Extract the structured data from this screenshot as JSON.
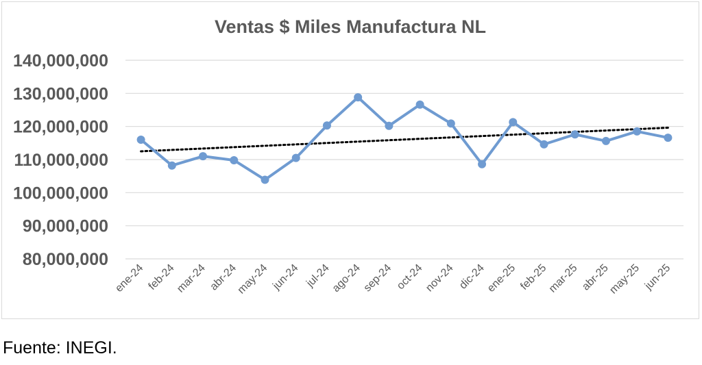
{
  "chart_data": {
    "type": "line",
    "title": "Ventas $ Miles Manufactura NL",
    "xlabel": "",
    "ylabel": "",
    "categories": [
      "ene-24",
      "feb-24",
      "mar-24",
      "abr-24",
      "may-24",
      "jun-24",
      "jul-24",
      "ago-24",
      "sep-24",
      "oct-24",
      "nov-24",
      "dic-24",
      "ene-25",
      "feb-25",
      "mar-25",
      "abr-25",
      "may-25",
      "jun-25"
    ],
    "series": [
      {
        "values": [
          116000000,
          108200000,
          111000000,
          109800000,
          103900000,
          110500000,
          120300000,
          128800000,
          120200000,
          126600000,
          120900000,
          108600000,
          121300000,
          114600000,
          117600000,
          115600000,
          118500000,
          116600000
        ],
        "color": "#6f9bd1"
      }
    ],
    "trendline": {
      "type": "linear",
      "style": "dotted",
      "color": "#000000"
    },
    "ylim": [
      80000000,
      140000000
    ],
    "yticks": [
      80000000,
      90000000,
      100000000,
      110000000,
      120000000,
      130000000,
      140000000
    ],
    "ytick_labels": [
      "80,000,000",
      "90,000,000",
      "100,000,000",
      "110,000,000",
      "120,000,000",
      "130,000,000",
      "140,000,000"
    ],
    "grid": true,
    "legend": "none"
  },
  "footer": {
    "source": "Fuente: INEGI."
  }
}
